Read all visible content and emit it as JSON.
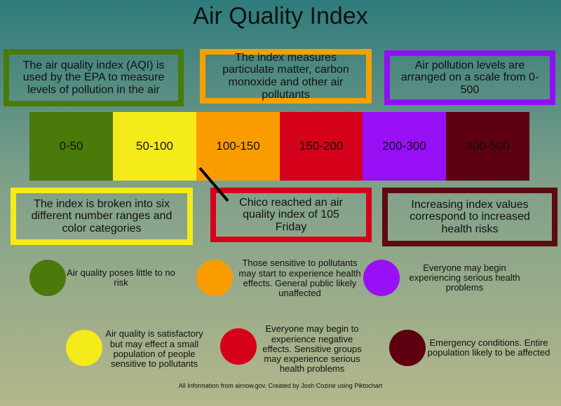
{
  "header": {
    "title": "Air Quality Index"
  },
  "top_notes": [
    "The air quality index (AQI) is used by the EPA to measure levels of pollution in the air",
    "The index measures particulate matter, carbon monoxide and other air pollutants",
    "Air pollution levels are arranged on a scale from 0-500"
  ],
  "ranges": [
    "0-50",
    "50-100",
    "100-150",
    "150-200",
    "200-300",
    "300-500"
  ],
  "bottom_notes": [
    "The index is broken into six different number ranges and color categories",
    "Chico reached an air quality index of 105 Friday",
    "Increasing index values correspond to increased health risks"
  ],
  "levels": [
    "Air quality poses little to no risk",
    "Those sensitive to pollutants may start to experience health effects. General public likely unaffected",
    "Everyone may begin experiencing serious health problems",
    "Air quality is satisfactory but may effect a small population of people sensitive to pollutants",
    "Everyone may begin to experience negative effects. Sensitive groups may experience serious health problems",
    "Emergency conditions. Entire population likely to be affected"
  ],
  "footer": "All Information from airnow.gov. Created by Josh Cozine using Piktochart"
}
